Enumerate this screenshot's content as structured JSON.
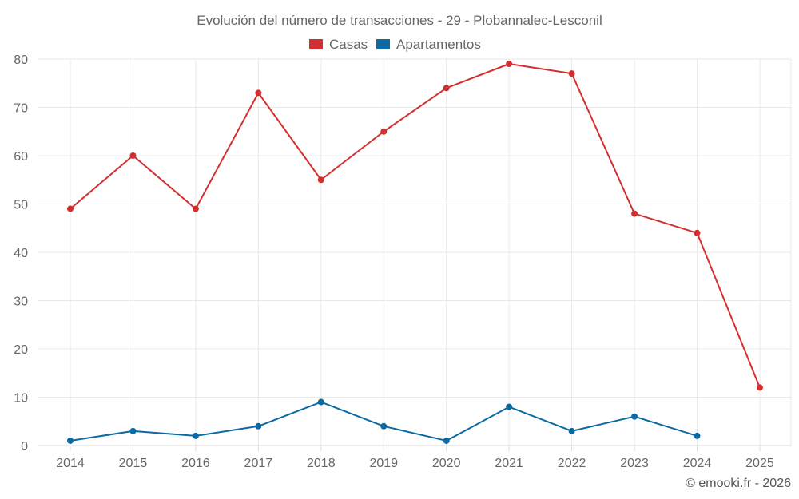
{
  "chart_data": {
    "type": "line",
    "title": "Evolución del número de transacciones - 29 - Plobannalec-Lesconil",
    "categories": [
      "2014",
      "2015",
      "2016",
      "2017",
      "2018",
      "2019",
      "2020",
      "2021",
      "2022",
      "2023",
      "2024",
      "2025"
    ],
    "series": [
      {
        "name": "Casas",
        "color": "#d32f2f",
        "values": [
          49,
          60,
          49,
          73,
          55,
          65,
          74,
          79,
          77,
          48,
          44,
          12
        ]
      },
      {
        "name": "Apartamentos",
        "color": "#0b6aa2",
        "values": [
          1,
          3,
          2,
          4,
          9,
          4,
          1,
          8,
          3,
          6,
          2,
          null
        ]
      }
    ],
    "ylim": [
      0,
      80
    ],
    "yticks": [
      "0",
      "10",
      "20",
      "30",
      "40",
      "50",
      "60",
      "70",
      "80"
    ],
    "xlabel": "",
    "ylabel": "",
    "grid": true,
    "legend_position": "top-center"
  },
  "footer": {
    "credit": "© emooki.fr - 2026"
  }
}
